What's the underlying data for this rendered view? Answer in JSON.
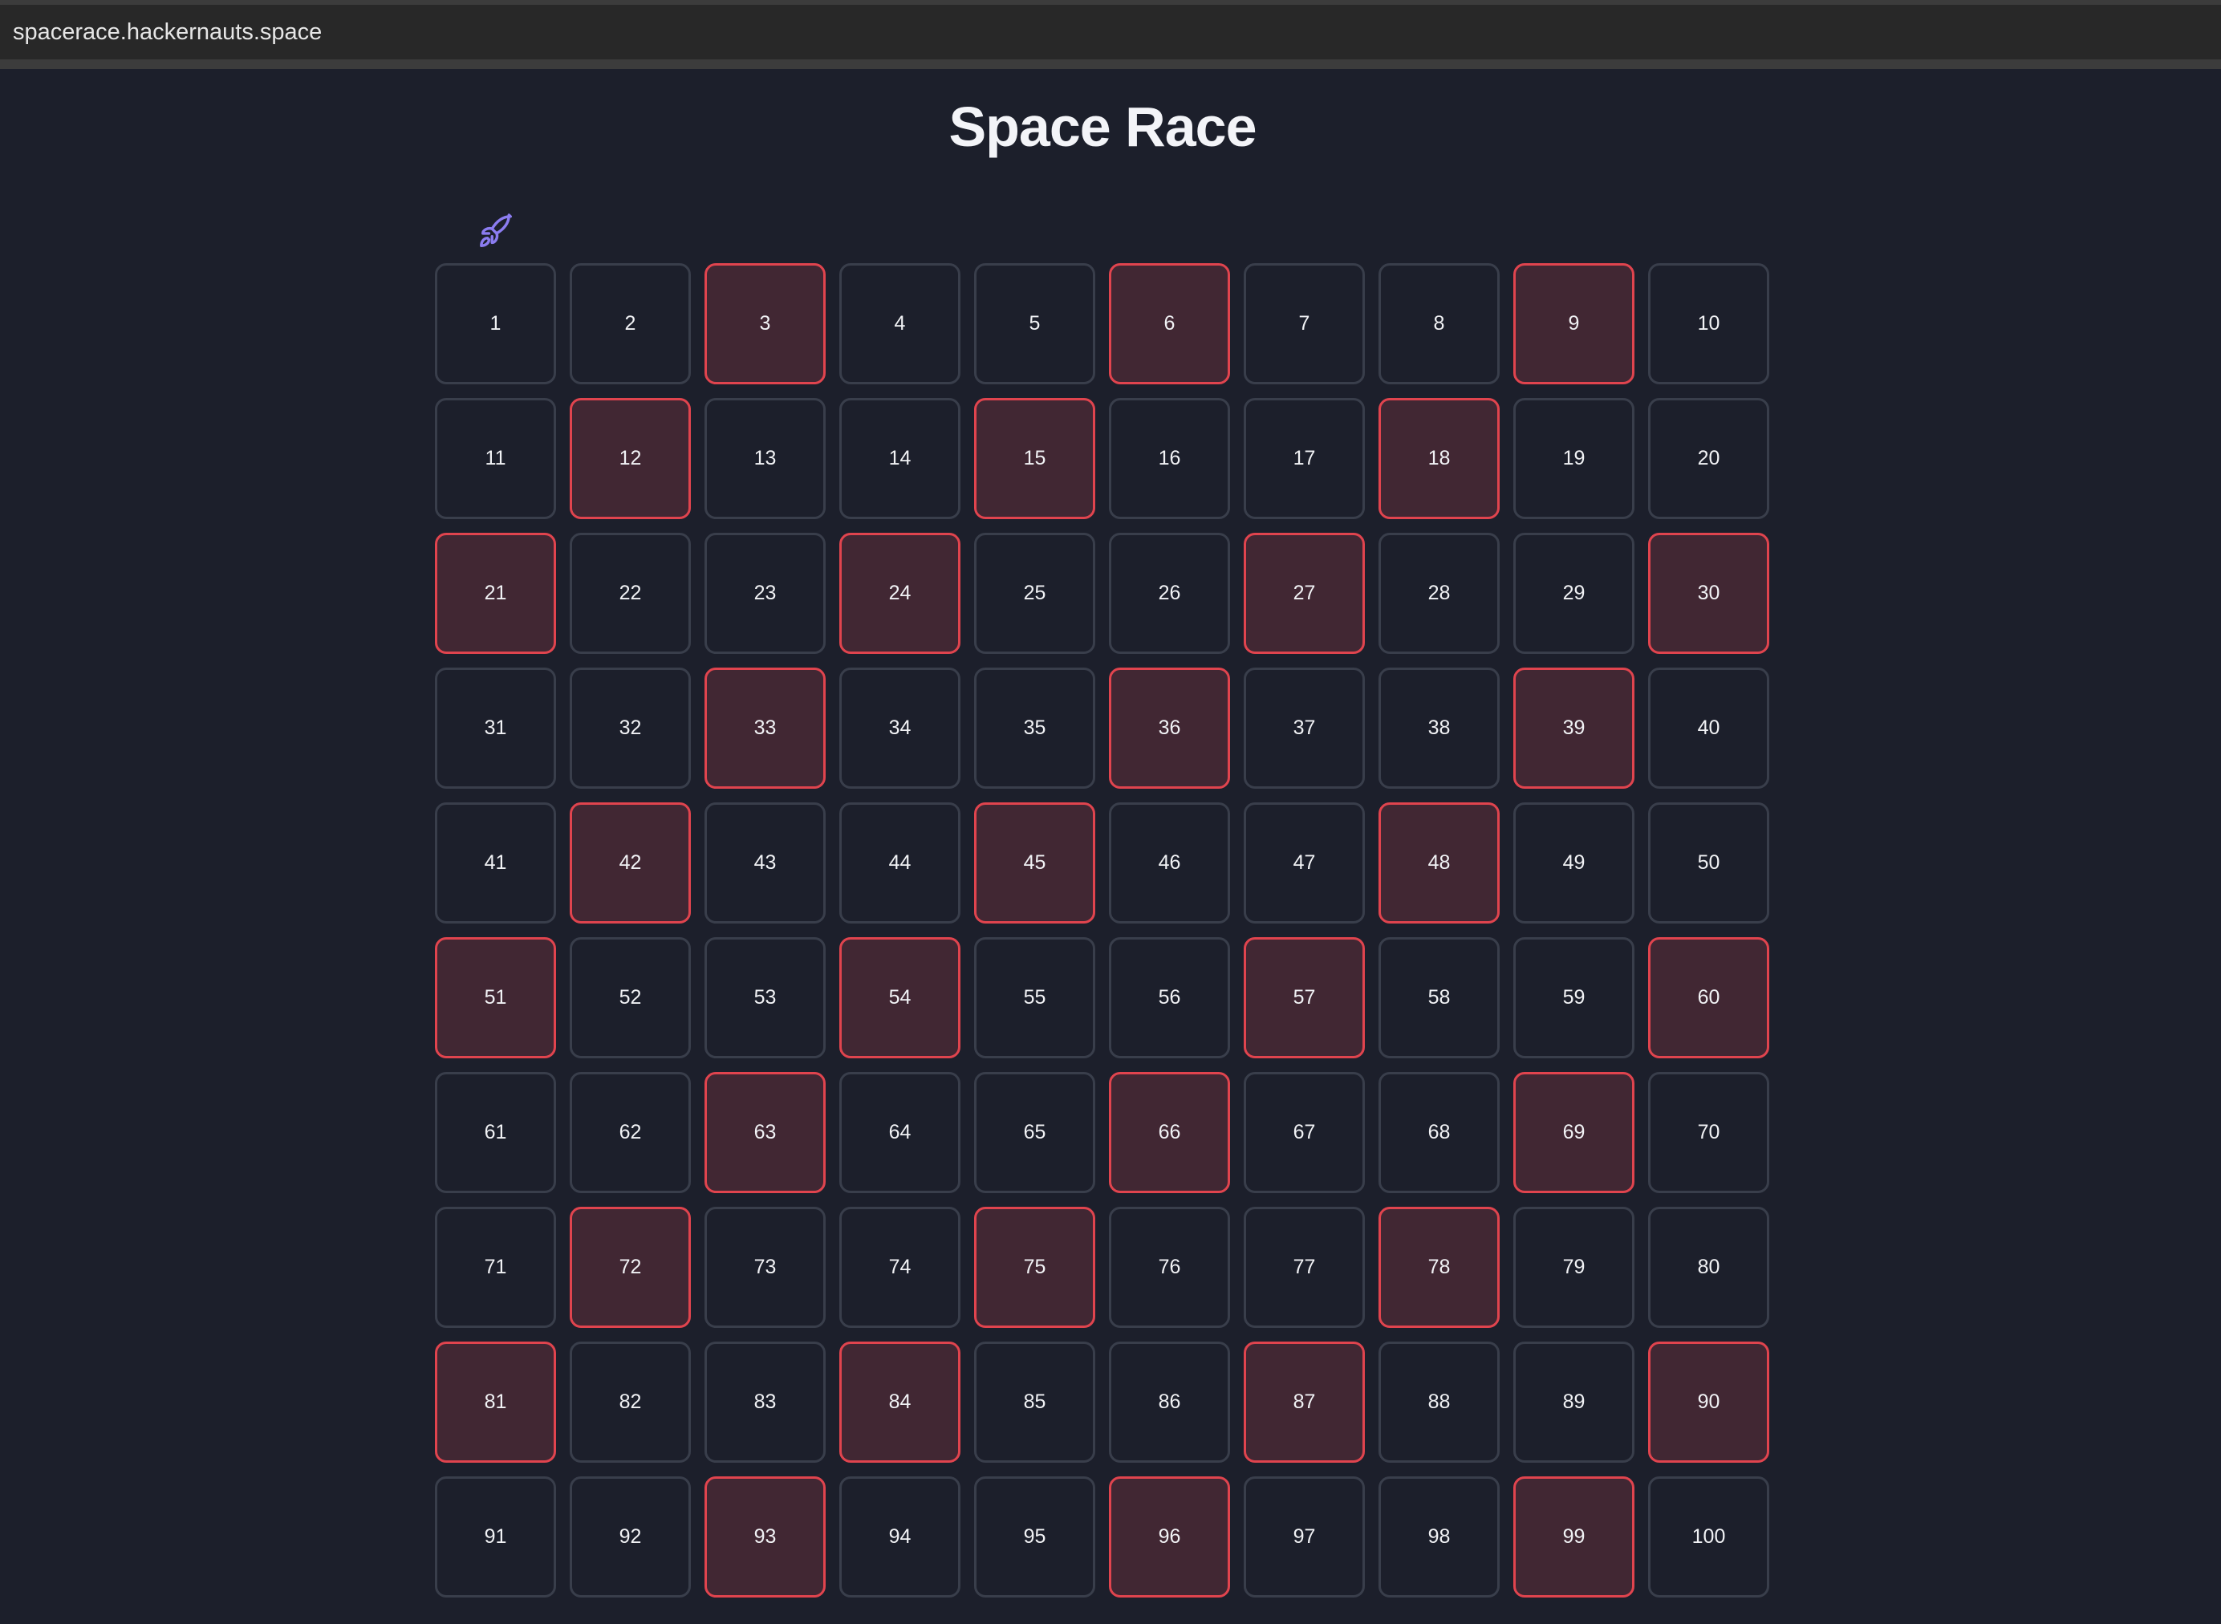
{
  "browser": {
    "url": "spacerace.hackernauts.space"
  },
  "page": {
    "title": "Space Race"
  },
  "player": {
    "icon": "rocket-icon",
    "position": 1,
    "color": "#8b7cf0"
  },
  "board": {
    "cell_count": 100,
    "columns": 10,
    "hazard_color": "#e0444e",
    "hazard_cells": [
      3,
      6,
      9,
      12,
      15,
      18,
      21,
      24,
      27,
      30,
      33,
      36,
      39,
      42,
      45,
      48,
      51,
      54,
      57,
      60,
      63,
      66,
      69,
      72,
      75,
      78,
      81,
      84,
      87,
      90,
      93,
      96,
      99
    ]
  }
}
